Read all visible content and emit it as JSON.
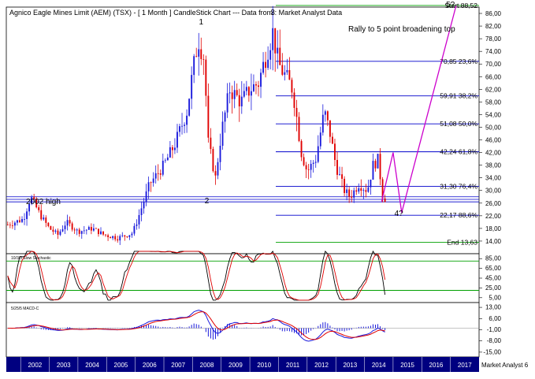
{
  "title": "Agnico Eagle Mines Limit (AEM) (TSX) -  [ 1 Month ] CandleStick Chart --- Data from : Market Analyst Data",
  "annotation": "Rally to 5 point broadening top",
  "label_2002_high": "2002 high",
  "watermark": "Market Analyst 6",
  "colors": {
    "up": "#1a1adc",
    "down": "#e00000",
    "fib": "#0000cc",
    "start_end": "#00a000",
    "projection": "#cc00cc",
    "signal": "#e00000",
    "axis_bg": "#000080"
  },
  "chart_data": [
    {
      "type": "candlestick",
      "title": "Agnico Eagle Mines Limit (AEM) (TSX) -  [ 1 Month ] CandleStick Chart --- Data from : Market Analyst Data",
      "x_labels": [
        "2002",
        "2003",
        "2004",
        "2005",
        "2006",
        "2007",
        "2008",
        "2009",
        "2010",
        "2011",
        "2012",
        "2013",
        "2014",
        "2015",
        "2016",
        "2017"
      ],
      "x_range": [
        2001.5,
        2018.0
      ],
      "y_range": [
        10,
        88
      ],
      "y_ticks": [
        "86,00",
        "82,00",
        "78,00",
        "74,00",
        "70,00",
        "66,00",
        "62,00",
        "58,00",
        "54,00",
        "50,00",
        "46,00",
        "42,00",
        "38,00",
        "34,00",
        "30,00",
        "26,00",
        "22,00",
        "18,00",
        "14,00"
      ],
      "y_tick_values": [
        86,
        82,
        78,
        74,
        70,
        66,
        62,
        58,
        54,
        50,
        46,
        42,
        38,
        34,
        30,
        26,
        22,
        18,
        14
      ],
      "fib_levels": [
        {
          "label": "Start 88,52",
          "value": 88.52,
          "kind": "start"
        },
        {
          "label": "70,85 23,6%",
          "value": 70.85,
          "kind": "fib"
        },
        {
          "label": "59,91 38,2%",
          "value": 59.91,
          "kind": "fib"
        },
        {
          "label": "51,08 50,0%",
          "value": 51.08,
          "kind": "fib"
        },
        {
          "label": "42,24 61,8%",
          "value": 42.24,
          "kind": "fib"
        },
        {
          "label": "31,30 76,4%",
          "value": 31.3,
          "kind": "fib"
        },
        {
          "label": "22,17 88,6%",
          "value": 22.17,
          "kind": "fib"
        },
        {
          "label": "End 13,63",
          "value": 13.63,
          "kind": "end"
        }
      ],
      "reference_lines": [
        28.0,
        27.2,
        26.4
      ],
      "point_labels": [
        {
          "label": "1",
          "x": 2008.3,
          "y": 82.5
        },
        {
          "label": "2",
          "x": 2008.5,
          "y": 26.0
        },
        {
          "label": "3",
          "x": 2010.8,
          "y": 85.5
        },
        {
          "label": "4?",
          "x": 2015.2,
          "y": 22.0
        },
        {
          "label": "5?",
          "x": 2017.0,
          "y": 88.0
        }
      ],
      "projection_path": [
        [
          2014.6,
          26.5
        ],
        [
          2015.0,
          42.0
        ],
        [
          2015.3,
          23.0
        ],
        [
          2017.2,
          88.5
        ]
      ],
      "waypoints": [
        [
          2001.5,
          19
        ],
        [
          2002.1,
          21
        ],
        [
          2002.35,
          28
        ],
        [
          2002.7,
          22
        ],
        [
          2003.0,
          18
        ],
        [
          2003.3,
          16
        ],
        [
          2003.6,
          20
        ],
        [
          2004.0,
          17
        ],
        [
          2004.5,
          18
        ],
        [
          2004.9,
          16
        ],
        [
          2005.4,
          15
        ],
        [
          2005.9,
          16.5
        ],
        [
          2006.05,
          20
        ],
        [
          2006.2,
          24
        ],
        [
          2006.5,
          32
        ],
        [
          2007.0,
          38
        ],
        [
          2007.4,
          45
        ],
        [
          2007.8,
          55
        ],
        [
          2008.0,
          67
        ],
        [
          2008.2,
          78
        ],
        [
          2008.4,
          72
        ],
        [
          2008.55,
          45
        ],
        [
          2008.8,
          34
        ],
        [
          2009.0,
          48
        ],
        [
          2009.3,
          62
        ],
        [
          2009.7,
          58
        ],
        [
          2010.0,
          62
        ],
        [
          2010.3,
          64
        ],
        [
          2010.6,
          74
        ],
        [
          2010.8,
          80
        ],
        [
          2011.0,
          70
        ],
        [
          2011.5,
          62
        ],
        [
          2011.8,
          42
        ],
        [
          2012.0,
          36
        ],
        [
          2012.3,
          40
        ],
        [
          2012.6,
          55
        ],
        [
          2012.8,
          48
        ],
        [
          2013.0,
          38
        ],
        [
          2013.3,
          30
        ],
        [
          2013.5,
          28
        ],
        [
          2013.8,
          32
        ],
        [
          2014.1,
          30
        ],
        [
          2014.3,
          38
        ],
        [
          2014.5,
          40
        ],
        [
          2014.6,
          29
        ],
        [
          2014.75,
          27
        ]
      ]
    },
    {
      "type": "line",
      "title": "10/3/3 Slow Stochastic",
      "y_range": [
        -5,
        95
      ],
      "y_ticks": [
        "85,00",
        "65,00",
        "45,00",
        "25,00",
        "5,00"
      ],
      "y_tick_values": [
        85,
        65,
        45,
        25,
        5
      ],
      "ref_lines": [
        80,
        20
      ]
    },
    {
      "type": "line",
      "title": "5/25/5 MACD-C",
      "y_range": [
        -18,
        16
      ],
      "y_ticks": [
        "13,00",
        "6,00",
        "-1,00",
        "-8,00",
        "-15,00"
      ],
      "y_tick_values": [
        13,
        6,
        -1,
        -8,
        -15
      ]
    }
  ]
}
